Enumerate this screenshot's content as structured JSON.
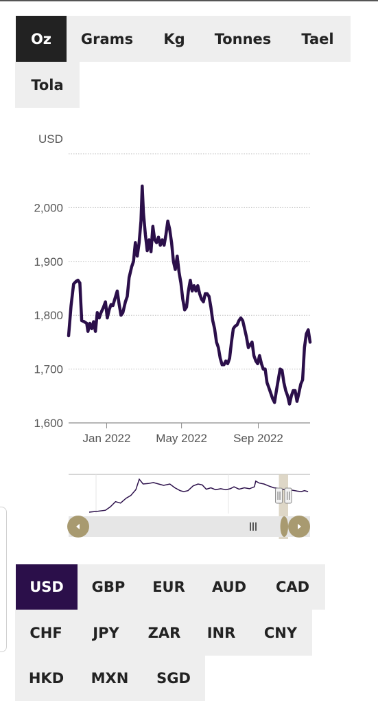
{
  "unit_tabs": [
    "Oz",
    "Grams",
    "Kg",
    "Tonnes",
    "Tael",
    "Tola"
  ],
  "selected_unit": "Oz",
  "currency_tabs": [
    "USD",
    "GBP",
    "EUR",
    "AUD",
    "CAD",
    "CHF",
    "JPY",
    "ZAR",
    "INR",
    "CNY",
    "HKD",
    "MXN",
    "SGD"
  ],
  "selected_currency": "USD",
  "colors": {
    "line": "#2b0f4a",
    "unit_selected_bg": "#222222",
    "currency_selected_bg": "#2b0f4a",
    "navigator_handle": "#a89a70",
    "navigator_selection": "#d8d0bd"
  },
  "icons": {
    "nav_left": "triangle-left-icon",
    "nav_right": "triangle-right-icon",
    "grip": "grip-lines-icon"
  },
  "chart_data": {
    "type": "line",
    "title": "",
    "ylabel": "USD",
    "xlabel": "",
    "ylim": [
      1600,
      2100
    ],
    "yticks": [
      1600,
      1700,
      1800,
      1900,
      2000
    ],
    "ytick_labels": [
      "1,600",
      "1,700",
      "1,800",
      "1,900",
      "2,000"
    ],
    "xtick_labels": [
      "Jan 2022",
      "May 2022",
      "Sep 2022"
    ],
    "xtick_values": [
      "2022-01-01",
      "2022-05-01",
      "2022-09-01"
    ],
    "grid": true,
    "series": [
      {
        "values": [
          [
            "2021-11-01",
            1762
          ],
          [
            "2021-11-05",
            1818
          ],
          [
            "2021-11-09",
            1858
          ],
          [
            "2021-11-13",
            1863
          ],
          [
            "2021-11-16",
            1865
          ],
          [
            "2021-11-19",
            1860
          ],
          [
            "2021-11-22",
            1790
          ],
          [
            "2021-11-26",
            1788
          ],
          [
            "2021-11-30",
            1785
          ],
          [
            "2021-12-02",
            1770
          ],
          [
            "2021-12-05",
            1785
          ],
          [
            "2021-12-08",
            1775
          ],
          [
            "2021-12-11",
            1788
          ],
          [
            "2021-12-14",
            1770
          ],
          [
            "2021-12-17",
            1805
          ],
          [
            "2021-12-20",
            1795
          ],
          [
            "2021-12-23",
            1805
          ],
          [
            "2021-12-27",
            1815
          ],
          [
            "2021-12-30",
            1825
          ],
          [
            "2022-01-02",
            1795
          ],
          [
            "2022-01-05",
            1810
          ],
          [
            "2022-01-08",
            1820
          ],
          [
            "2022-01-11",
            1818
          ],
          [
            "2022-01-14",
            1830
          ],
          [
            "2022-01-18",
            1845
          ],
          [
            "2022-01-21",
            1820
          ],
          [
            "2022-01-24",
            1800
          ],
          [
            "2022-01-27",
            1805
          ],
          [
            "2022-01-31",
            1825
          ],
          [
            "2022-02-03",
            1835
          ],
          [
            "2022-02-06",
            1870
          ],
          [
            "2022-02-10",
            1890
          ],
          [
            "2022-02-13",
            1900
          ],
          [
            "2022-02-16",
            1935
          ],
          [
            "2022-02-19",
            1910
          ],
          [
            "2022-02-22",
            1935
          ],
          [
            "2022-02-25",
            1975
          ],
          [
            "2022-02-27",
            2040
          ],
          [
            "2022-03-01",
            1990
          ],
          [
            "2022-03-04",
            1950
          ],
          [
            "2022-03-07",
            1920
          ],
          [
            "2022-03-10",
            1940
          ],
          [
            "2022-03-13",
            1918
          ],
          [
            "2022-03-16",
            1965
          ],
          [
            "2022-03-19",
            1940
          ],
          [
            "2022-03-22",
            1935
          ],
          [
            "2022-03-25",
            1945
          ],
          [
            "2022-03-28",
            1930
          ],
          [
            "2022-03-31",
            1940
          ],
          [
            "2022-04-03",
            1930
          ],
          [
            "2022-04-06",
            1950
          ],
          [
            "2022-04-09",
            1975
          ],
          [
            "2022-04-12",
            1960
          ],
          [
            "2022-04-15",
            1935
          ],
          [
            "2022-04-18",
            1900
          ],
          [
            "2022-04-21",
            1885
          ],
          [
            "2022-04-24",
            1910
          ],
          [
            "2022-04-27",
            1880
          ],
          [
            "2022-04-30",
            1860
          ],
          [
            "2022-05-03",
            1830
          ],
          [
            "2022-05-06",
            1810
          ],
          [
            "2022-05-09",
            1815
          ],
          [
            "2022-05-12",
            1845
          ],
          [
            "2022-05-15",
            1865
          ],
          [
            "2022-05-18",
            1845
          ],
          [
            "2022-05-21",
            1855
          ],
          [
            "2022-05-24",
            1845
          ],
          [
            "2022-05-27",
            1855
          ],
          [
            "2022-05-30",
            1840
          ],
          [
            "2022-06-02",
            1830
          ],
          [
            "2022-06-05",
            1825
          ],
          [
            "2022-06-08",
            1840
          ],
          [
            "2022-06-11",
            1840
          ],
          [
            "2022-06-14",
            1835
          ],
          [
            "2022-06-17",
            1815
          ],
          [
            "2022-06-20",
            1790
          ],
          [
            "2022-06-23",
            1775
          ],
          [
            "2022-06-26",
            1750
          ],
          [
            "2022-06-29",
            1740
          ],
          [
            "2022-07-02",
            1720
          ],
          [
            "2022-07-05",
            1708
          ],
          [
            "2022-07-08",
            1708
          ],
          [
            "2022-07-11",
            1715
          ],
          [
            "2022-07-14",
            1710
          ],
          [
            "2022-07-17",
            1720
          ],
          [
            "2022-07-20",
            1750
          ],
          [
            "2022-07-23",
            1775
          ],
          [
            "2022-07-26",
            1780
          ],
          [
            "2022-07-29",
            1782
          ],
          [
            "2022-08-01",
            1790
          ],
          [
            "2022-08-04",
            1795
          ],
          [
            "2022-08-07",
            1790
          ],
          [
            "2022-08-10",
            1775
          ],
          [
            "2022-08-13",
            1760
          ],
          [
            "2022-08-16",
            1740
          ],
          [
            "2022-08-19",
            1745
          ],
          [
            "2022-08-22",
            1750
          ],
          [
            "2022-08-25",
            1725
          ],
          [
            "2022-08-28",
            1715
          ],
          [
            "2022-08-31",
            1710
          ],
          [
            "2022-09-03",
            1725
          ],
          [
            "2022-09-06",
            1710
          ],
          [
            "2022-09-09",
            1700
          ],
          [
            "2022-09-12",
            1700
          ],
          [
            "2022-09-15",
            1675
          ],
          [
            "2022-09-18",
            1665
          ],
          [
            "2022-09-21",
            1655
          ],
          [
            "2022-09-24",
            1645
          ],
          [
            "2022-09-27",
            1638
          ],
          [
            "2022-09-30",
            1660
          ],
          [
            "2022-10-03",
            1680
          ],
          [
            "2022-10-06",
            1700
          ],
          [
            "2022-10-09",
            1698
          ],
          [
            "2022-10-12",
            1675
          ],
          [
            "2022-10-15",
            1660
          ],
          [
            "2022-10-18",
            1650
          ],
          [
            "2022-10-21",
            1635
          ],
          [
            "2022-10-24",
            1650
          ],
          [
            "2022-10-27",
            1660
          ],
          [
            "2022-10-30",
            1660
          ],
          [
            "2022-11-02",
            1640
          ],
          [
            "2022-11-05",
            1655
          ],
          [
            "2022-11-08",
            1672
          ],
          [
            "2022-11-11",
            1680
          ],
          [
            "2022-11-14",
            1740
          ],
          [
            "2022-11-17",
            1765
          ],
          [
            "2022-11-20",
            1773
          ],
          [
            "2022-11-23",
            1750
          ]
        ]
      }
    ],
    "navigator": {
      "selected_range": [
        "2022-07-01",
        "2022-11-23"
      ],
      "values": [
        [
          "2019-12-01",
          1465
        ],
        [
          "2020-01-15",
          1475
        ],
        [
          "2020-02-20",
          1485
        ],
        [
          "2020-03-15",
          1520
        ],
        [
          "2020-04-10",
          1575
        ],
        [
          "2020-05-05",
          1560
        ],
        [
          "2020-06-01",
          1610
        ],
        [
          "2020-06-25",
          1640
        ],
        [
          "2020-07-20",
          1700
        ],
        [
          "2020-08-06",
          1810
        ],
        [
          "2020-08-25",
          1760
        ],
        [
          "2020-09-20",
          1765
        ],
        [
          "2020-10-15",
          1775
        ],
        [
          "2020-11-10",
          1760
        ],
        [
          "2020-12-05",
          1745
        ],
        [
          "2021-01-05",
          1760
        ],
        [
          "2021-01-30",
          1720
        ],
        [
          "2021-02-25",
          1690
        ],
        [
          "2021-03-15",
          1680
        ],
        [
          "2021-04-05",
          1690
        ],
        [
          "2021-05-01",
          1740
        ],
        [
          "2021-05-25",
          1760
        ],
        [
          "2021-06-15",
          1750
        ],
        [
          "2021-07-05",
          1705
        ],
        [
          "2021-07-28",
          1720
        ],
        [
          "2021-08-20",
          1700
        ],
        [
          "2021-09-15",
          1710
        ],
        [
          "2021-10-10",
          1700
        ],
        [
          "2021-11-01",
          1710
        ],
        [
          "2021-11-20",
          1730
        ],
        [
          "2021-12-15",
          1705
        ],
        [
          "2022-01-10",
          1720
        ],
        [
          "2022-02-05",
          1710
        ],
        [
          "2022-03-01",
          1730
        ],
        [
          "2022-03-08",
          1790
        ],
        [
          "2022-03-25",
          1770
        ],
        [
          "2022-04-18",
          1760
        ],
        [
          "2022-05-10",
          1740
        ],
        [
          "2022-06-05",
          1720
        ],
        [
          "2022-06-28",
          1715
        ],
        [
          "2022-07-20",
          1705
        ],
        [
          "2022-08-12",
          1700
        ],
        [
          "2022-09-05",
          1695
        ],
        [
          "2022-10-01",
          1685
        ],
        [
          "2022-10-20",
          1680
        ],
        [
          "2022-11-05",
          1690
        ],
        [
          "2022-11-23",
          1680
        ]
      ]
    }
  }
}
